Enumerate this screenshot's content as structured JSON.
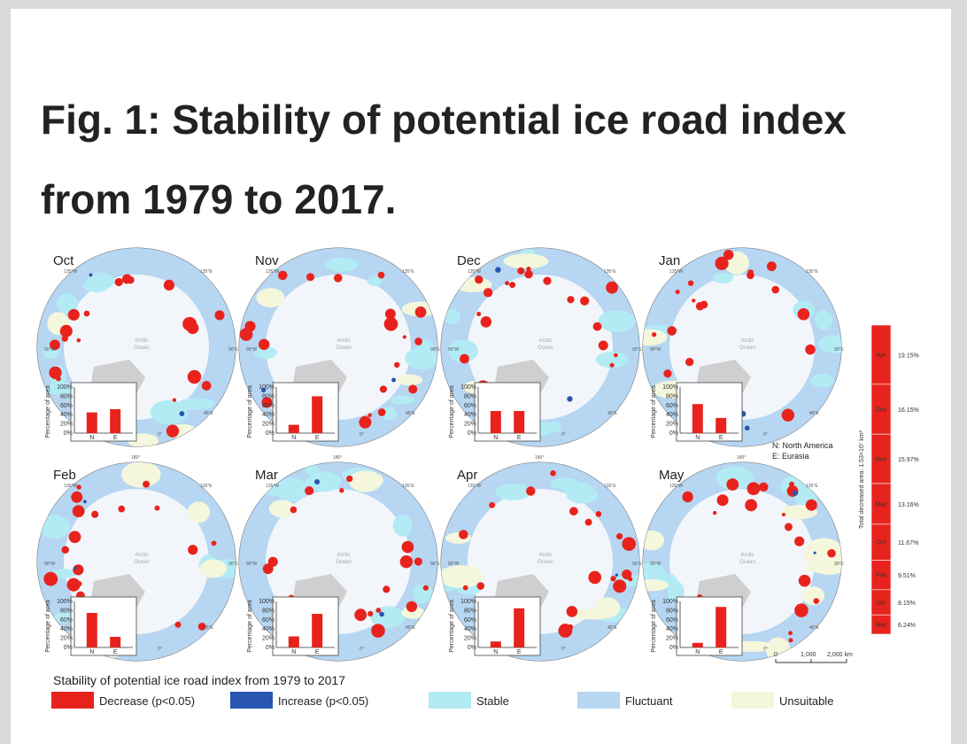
{
  "title": "Fig. 1: Stability of potential ice road index from 1979 to 2017.",
  "colors": {
    "decrease": "#e8231d",
    "increase": "#2755b0",
    "stable": "#b3ebf5",
    "fluctuant": "#b6d6f2",
    "unsuitable": "#f4f7dc"
  },
  "map_labels": {
    "ocean_line1": "Arctic",
    "ocean_line2": "Ocean",
    "lon_135w": "135°W",
    "lon_135e": "135°E",
    "lon_90w": "90°W",
    "lon_90e": "90°E",
    "lon_45w": "45°W",
    "lon_45e": "45°E",
    "lon_180": "180°",
    "lon_0": "0°"
  },
  "panel_axis": {
    "ylabel": "Percentage of area",
    "yticks": [
      "100%",
      "80%",
      "60%",
      "40%",
      "20%",
      "0%"
    ],
    "cats": [
      "N",
      "E"
    ]
  },
  "months": [
    {
      "label": "Oct",
      "N": 45,
      "E": 52
    },
    {
      "label": "Nov",
      "N": 18,
      "E": 80
    },
    {
      "label": "Dec",
      "N": 48,
      "E": 48
    },
    {
      "label": "Jan",
      "N": 63,
      "E": 33
    },
    {
      "label": "Feb",
      "N": 75,
      "E": 23
    },
    {
      "label": "Mar",
      "N": 24,
      "E": 73
    },
    {
      "label": "Apr",
      "N": 13,
      "E": 85
    },
    {
      "label": "May",
      "N": 10,
      "E": 88
    }
  ],
  "key": {
    "line1": "N: North America",
    "line2": "E: Eurasia"
  },
  "scale": {
    "t0": "0",
    "t1": "1,000",
    "t2": "2,000 km"
  },
  "total_bar": {
    "axis_label": "Total decreased area: 1.53×10⁷ km²",
    "items": [
      {
        "month": "Apr",
        "pct": "19.15%",
        "v": 19.15
      },
      {
        "month": "Dec",
        "pct": "16.15%",
        "v": 16.15
      },
      {
        "month": "Nov",
        "pct": "15.97%",
        "v": 15.97
      },
      {
        "month": "May",
        "pct": "13.16%",
        "v": 13.16
      },
      {
        "month": "Oct",
        "pct": "11.67%",
        "v": 11.67
      },
      {
        "month": "Feb",
        "pct": "9.51%",
        "v": 9.51
      },
      {
        "month": "Jan",
        "pct": "8.15%",
        "v": 8.15
      },
      {
        "month": "Mar",
        "pct": "6.24%",
        "v": 6.24
      }
    ]
  },
  "legend": {
    "title": "Stability of potential ice road index from 1979 to 2017",
    "items": [
      {
        "label": "Decrease (p<0.05)",
        "color": "#e8231d"
      },
      {
        "label": "Increase (p<0.05)",
        "color": "#2755b0"
      },
      {
        "label": "Stable",
        "color": "#b3ebf5"
      },
      {
        "label": "Fluctuant",
        "color": "#b6d6f2"
      },
      {
        "label": "Unsuitable",
        "color": "#f4f7dc"
      }
    ]
  },
  "chart_data": {
    "type": "bar",
    "title": "",
    "categories": [
      "N",
      "E"
    ],
    "ylabel": "Percentage of area",
    "ylim": [
      0,
      100
    ],
    "series": [
      {
        "name": "Oct",
        "values": [
          45,
          52
        ]
      },
      {
        "name": "Nov",
        "values": [
          18,
          80
        ]
      },
      {
        "name": "Dec",
        "values": [
          48,
          48
        ]
      },
      {
        "name": "Jan",
        "values": [
          63,
          33
        ]
      },
      {
        "name": "Feb",
        "values": [
          75,
          23
        ]
      },
      {
        "name": "Mar",
        "values": [
          24,
          73
        ]
      },
      {
        "name": "Apr",
        "values": [
          13,
          85
        ]
      },
      {
        "name": "May",
        "values": [
          10,
          88
        ]
      }
    ]
  }
}
